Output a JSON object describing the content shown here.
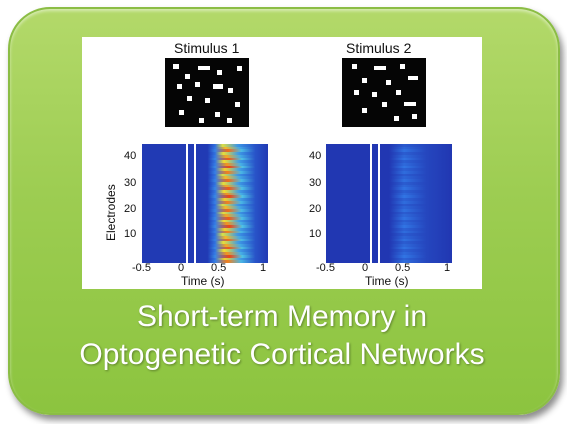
{
  "panels": [
    {
      "title": "Stimulus 1",
      "xlabel": "Time (s)",
      "ylabel": "Electrodes",
      "xticks": [
        "-0.5",
        "0",
        "0.5",
        "1"
      ],
      "yticks": [
        "40",
        "30",
        "20",
        "10"
      ],
      "response": "strong"
    },
    {
      "title": "Stimulus 2",
      "xlabel": "Time (s)",
      "ylabel": "",
      "xticks": [
        "-0.5",
        "0",
        "0.5",
        "1"
      ],
      "yticks": [
        "40",
        "30",
        "20",
        "10"
      ],
      "response": "weak"
    }
  ],
  "caption": {
    "line1": "Short-term Memory in",
    "line2": "Optogenetic Cortical Networks"
  },
  "colors": {
    "card": "#9dcd52",
    "heat_low": "#1f2fb0",
    "heat_high": "#ff3a00"
  }
}
